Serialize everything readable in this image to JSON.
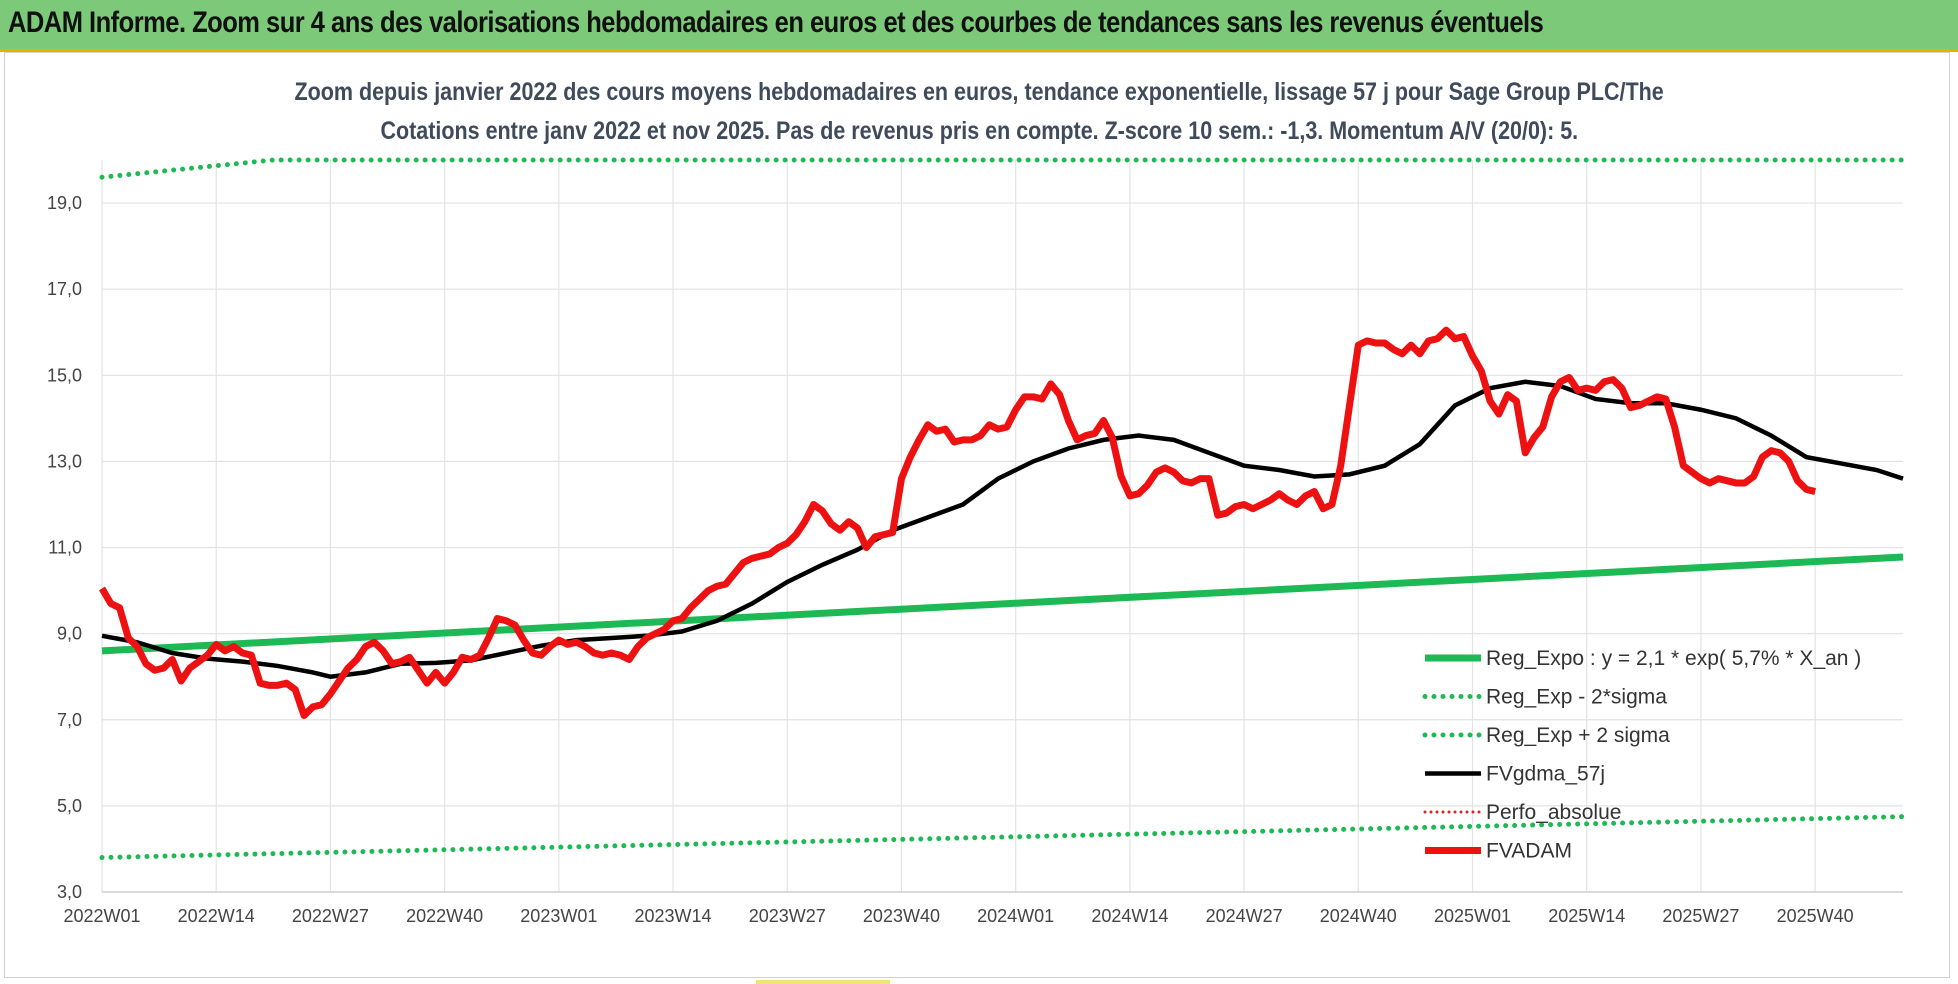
{
  "header": {
    "title": "ADAM Informe. Zoom sur 4 ans des valorisations hebdomadaires en euros et des courbes de tendances sans les revenus éventuels"
  },
  "colors": {
    "banner": "#7dc97a",
    "reg_expo": "#1db954",
    "fvgdma": "#000000",
    "fvadam": "#ee1111",
    "perfo": "#dd2222"
  },
  "chart_data": {
    "type": "line",
    "title_line1": "Zoom depuis janvier 2022 des cours moyens hebdomadaires en euros, tendance exponentielle, lissage 57 j pour Sage Group PLC/The",
    "title_line2": "Cotations entre janv 2022 et nov 2025. Pas de revenus pris en compte. Z-score 10 sem.: -1,3. Momentum A/V (20/0): 5.",
    "ylim": [
      3,
      20
    ],
    "yticks": [
      "3,0",
      "5,0",
      "7,0",
      "9,0",
      "11,0",
      "13,0",
      "15,0",
      "17,0",
      "19,0"
    ],
    "ytick_values": [
      3,
      5,
      7,
      9,
      11,
      13,
      15,
      17,
      19
    ],
    "xlim": [
      0,
      205
    ],
    "xticks": [
      "2022W01",
      "2022W14",
      "2022W27",
      "2022W40",
      "2023W01",
      "2023W14",
      "2023W27",
      "2023W40",
      "2024W01",
      "2024W14",
      "2024W27",
      "2024W40",
      "2025W01",
      "2025W14",
      "2025W27",
      "2025W40"
    ],
    "xtick_positions": [
      0,
      13,
      26,
      39,
      52,
      65,
      78,
      91,
      104,
      117,
      130,
      143,
      156,
      169,
      182,
      195
    ],
    "series": [
      {
        "name": "Reg_Expo : y = 2,1 * exp( 5,7% *  X_an )",
        "style": "solid-green",
        "points": [
          [
            0,
            8.6
          ],
          [
            205,
            10.78
          ]
        ]
      },
      {
        "name": "Reg_Exp - 2*sigma",
        "style": "dotted-green",
        "points": [
          [
            0,
            3.8
          ],
          [
            205,
            4.75
          ]
        ]
      },
      {
        "name": "Reg_Exp + 2 sigma",
        "style": "dotted-green",
        "points": [
          [
            0,
            19.6
          ],
          [
            19.5,
            20.0
          ],
          [
            180,
            20.0
          ],
          [
            205,
            20.0
          ]
        ]
      },
      {
        "name": "FVgdma_57j",
        "style": "solid-black",
        "points": [
          [
            0,
            8.95
          ],
          [
            4,
            8.8
          ],
          [
            8,
            8.55
          ],
          [
            12,
            8.42
          ],
          [
            16,
            8.35
          ],
          [
            20,
            8.25
          ],
          [
            24,
            8.1
          ],
          [
            26,
            8.0
          ],
          [
            30,
            8.1
          ],
          [
            34,
            8.3
          ],
          [
            38,
            8.32
          ],
          [
            42,
            8.38
          ],
          [
            46,
            8.55
          ],
          [
            50,
            8.72
          ],
          [
            54,
            8.85
          ],
          [
            58,
            8.9
          ],
          [
            62,
            8.95
          ],
          [
            66,
            9.05
          ],
          [
            70,
            9.3
          ],
          [
            74,
            9.7
          ],
          [
            78,
            10.2
          ],
          [
            82,
            10.6
          ],
          [
            86,
            10.95
          ],
          [
            90,
            11.4
          ],
          [
            94,
            11.7
          ],
          [
            98,
            12.0
          ],
          [
            102,
            12.6
          ],
          [
            106,
            13.0
          ],
          [
            110,
            13.3
          ],
          [
            114,
            13.5
          ],
          [
            118,
            13.6
          ],
          [
            122,
            13.5
          ],
          [
            126,
            13.2
          ],
          [
            130,
            12.9
          ],
          [
            134,
            12.8
          ],
          [
            138,
            12.65
          ],
          [
            142,
            12.7
          ],
          [
            146,
            12.9
          ],
          [
            150,
            13.4
          ],
          [
            154,
            14.3
          ],
          [
            158,
            14.7
          ],
          [
            162,
            14.85
          ],
          [
            166,
            14.75
          ],
          [
            170,
            14.45
          ],
          [
            174,
            14.35
          ],
          [
            178,
            14.35
          ],
          [
            182,
            14.2
          ],
          [
            186,
            14.0
          ],
          [
            190,
            13.6
          ],
          [
            194,
            13.1
          ],
          [
            198,
            12.95
          ],
          [
            202,
            12.8
          ],
          [
            205,
            12.6
          ]
        ]
      },
      {
        "name": "Perfo_absolue",
        "style": "dotted-red",
        "points": []
      },
      {
        "name": "FVADAM",
        "style": "solid-red",
        "points": [
          [
            0,
            10.05
          ],
          [
            1,
            9.7
          ],
          [
            2,
            9.6
          ],
          [
            3,
            8.9
          ],
          [
            4,
            8.7
          ],
          [
            5,
            8.3
          ],
          [
            6,
            8.15
          ],
          [
            7,
            8.2
          ],
          [
            8,
            8.4
          ],
          [
            9,
            7.9
          ],
          [
            10,
            8.2
          ],
          [
            11,
            8.35
          ],
          [
            12,
            8.5
          ],
          [
            13,
            8.75
          ],
          [
            14,
            8.6
          ],
          [
            15,
            8.7
          ],
          [
            16,
            8.55
          ],
          [
            17,
            8.5
          ],
          [
            18,
            7.85
          ],
          [
            19,
            7.8
          ],
          [
            20,
            7.8
          ],
          [
            21,
            7.85
          ],
          [
            22,
            7.7
          ],
          [
            23,
            7.1
          ],
          [
            24,
            7.3
          ],
          [
            25,
            7.35
          ],
          [
            26,
            7.6
          ],
          [
            27,
            7.9
          ],
          [
            28,
            8.2
          ],
          [
            29,
            8.4
          ],
          [
            30,
            8.7
          ],
          [
            31,
            8.8
          ],
          [
            32,
            8.6
          ],
          [
            33,
            8.3
          ],
          [
            34,
            8.35
          ],
          [
            35,
            8.45
          ],
          [
            36,
            8.15
          ],
          [
            37,
            7.85
          ],
          [
            38,
            8.1
          ],
          [
            39,
            7.85
          ],
          [
            40,
            8.1
          ],
          [
            41,
            8.45
          ],
          [
            42,
            8.4
          ],
          [
            43,
            8.5
          ],
          [
            44,
            8.9
          ],
          [
            45,
            9.35
          ],
          [
            46,
            9.3
          ],
          [
            47,
            9.2
          ],
          [
            48,
            8.85
          ],
          [
            49,
            8.55
          ],
          [
            50,
            8.5
          ],
          [
            51,
            8.7
          ],
          [
            52,
            8.85
          ],
          [
            53,
            8.75
          ],
          [
            54,
            8.8
          ],
          [
            55,
            8.7
          ],
          [
            56,
            8.55
          ],
          [
            57,
            8.5
          ],
          [
            58,
            8.55
          ],
          [
            59,
            8.5
          ],
          [
            60,
            8.4
          ],
          [
            61,
            8.7
          ],
          [
            62,
            8.9
          ],
          [
            63,
            9.0
          ],
          [
            64,
            9.1
          ],
          [
            65,
            9.3
          ],
          [
            66,
            9.35
          ],
          [
            67,
            9.6
          ],
          [
            68,
            9.8
          ],
          [
            69,
            10.0
          ],
          [
            70,
            10.1
          ],
          [
            71,
            10.15
          ],
          [
            72,
            10.4
          ],
          [
            73,
            10.65
          ],
          [
            74,
            10.75
          ],
          [
            75,
            10.8
          ],
          [
            76,
            10.85
          ],
          [
            77,
            11.0
          ],
          [
            78,
            11.1
          ],
          [
            79,
            11.3
          ],
          [
            80,
            11.6
          ],
          [
            81,
            12.0
          ],
          [
            82,
            11.85
          ],
          [
            83,
            11.55
          ],
          [
            84,
            11.4
          ],
          [
            85,
            11.6
          ],
          [
            86,
            11.45
          ],
          [
            87,
            11.0
          ],
          [
            88,
            11.25
          ],
          [
            89,
            11.3
          ],
          [
            90,
            11.35
          ],
          [
            91,
            12.6
          ],
          [
            92,
            13.1
          ],
          [
            93,
            13.5
          ],
          [
            94,
            13.85
          ],
          [
            95,
            13.7
          ],
          [
            96,
            13.75
          ],
          [
            97,
            13.45
          ],
          [
            98,
            13.5
          ],
          [
            99,
            13.5
          ],
          [
            100,
            13.6
          ],
          [
            101,
            13.85
          ],
          [
            102,
            13.75
          ],
          [
            103,
            13.8
          ],
          [
            104,
            14.2
          ],
          [
            105,
            14.5
          ],
          [
            106,
            14.5
          ],
          [
            107,
            14.45
          ],
          [
            108,
            14.8
          ],
          [
            109,
            14.55
          ],
          [
            110,
            13.95
          ],
          [
            111,
            13.5
          ],
          [
            112,
            13.6
          ],
          [
            113,
            13.65
          ],
          [
            114,
            13.95
          ],
          [
            115,
            13.55
          ],
          [
            116,
            12.65
          ],
          [
            117,
            12.2
          ],
          [
            118,
            12.25
          ],
          [
            119,
            12.45
          ],
          [
            120,
            12.75
          ],
          [
            121,
            12.85
          ],
          [
            122,
            12.75
          ],
          [
            123,
            12.55
          ],
          [
            124,
            12.5
          ],
          [
            125,
            12.6
          ],
          [
            126,
            12.6
          ],
          [
            127,
            11.75
          ],
          [
            128,
            11.8
          ],
          [
            129,
            11.95
          ],
          [
            130,
            12.0
          ],
          [
            131,
            11.9
          ],
          [
            132,
            12.0
          ],
          [
            133,
            12.1
          ],
          [
            134,
            12.25
          ],
          [
            135,
            12.1
          ],
          [
            136,
            12.0
          ],
          [
            137,
            12.2
          ],
          [
            138,
            12.3
          ],
          [
            139,
            11.9
          ],
          [
            140,
            12.0
          ],
          [
            141,
            12.9
          ],
          [
            142,
            14.3
          ],
          [
            143,
            15.7
          ],
          [
            144,
            15.8
          ],
          [
            145,
            15.75
          ],
          [
            146,
            15.75
          ],
          [
            147,
            15.6
          ],
          [
            148,
            15.5
          ],
          [
            149,
            15.7
          ],
          [
            150,
            15.5
          ],
          [
            151,
            15.8
          ],
          [
            152,
            15.85
          ],
          [
            153,
            16.05
          ],
          [
            154,
            15.85
          ],
          [
            155,
            15.9
          ],
          [
            156,
            15.45
          ],
          [
            157,
            15.1
          ],
          [
            158,
            14.4
          ],
          [
            159,
            14.1
          ],
          [
            160,
            14.55
          ],
          [
            161,
            14.4
          ],
          [
            162,
            13.2
          ],
          [
            163,
            13.55
          ],
          [
            164,
            13.8
          ],
          [
            165,
            14.5
          ],
          [
            166,
            14.85
          ],
          [
            167,
            14.95
          ],
          [
            168,
            14.65
          ],
          [
            169,
            14.7
          ],
          [
            170,
            14.65
          ],
          [
            171,
            14.85
          ],
          [
            172,
            14.9
          ],
          [
            173,
            14.7
          ],
          [
            174,
            14.25
          ],
          [
            175,
            14.3
          ],
          [
            176,
            14.4
          ],
          [
            177,
            14.5
          ],
          [
            178,
            14.45
          ],
          [
            179,
            13.8
          ],
          [
            180,
            12.9
          ],
          [
            181,
            12.75
          ],
          [
            182,
            12.6
          ],
          [
            183,
            12.5
          ],
          [
            184,
            12.6
          ],
          [
            185,
            12.55
          ],
          [
            186,
            12.5
          ],
          [
            187,
            12.5
          ],
          [
            188,
            12.65
          ],
          [
            189,
            13.1
          ],
          [
            190,
            13.25
          ],
          [
            191,
            13.2
          ],
          [
            192,
            13.0
          ],
          [
            193,
            12.55
          ],
          [
            194,
            12.35
          ],
          [
            195,
            12.3
          ]
        ]
      }
    ],
    "legend_position": "bottom-right"
  }
}
